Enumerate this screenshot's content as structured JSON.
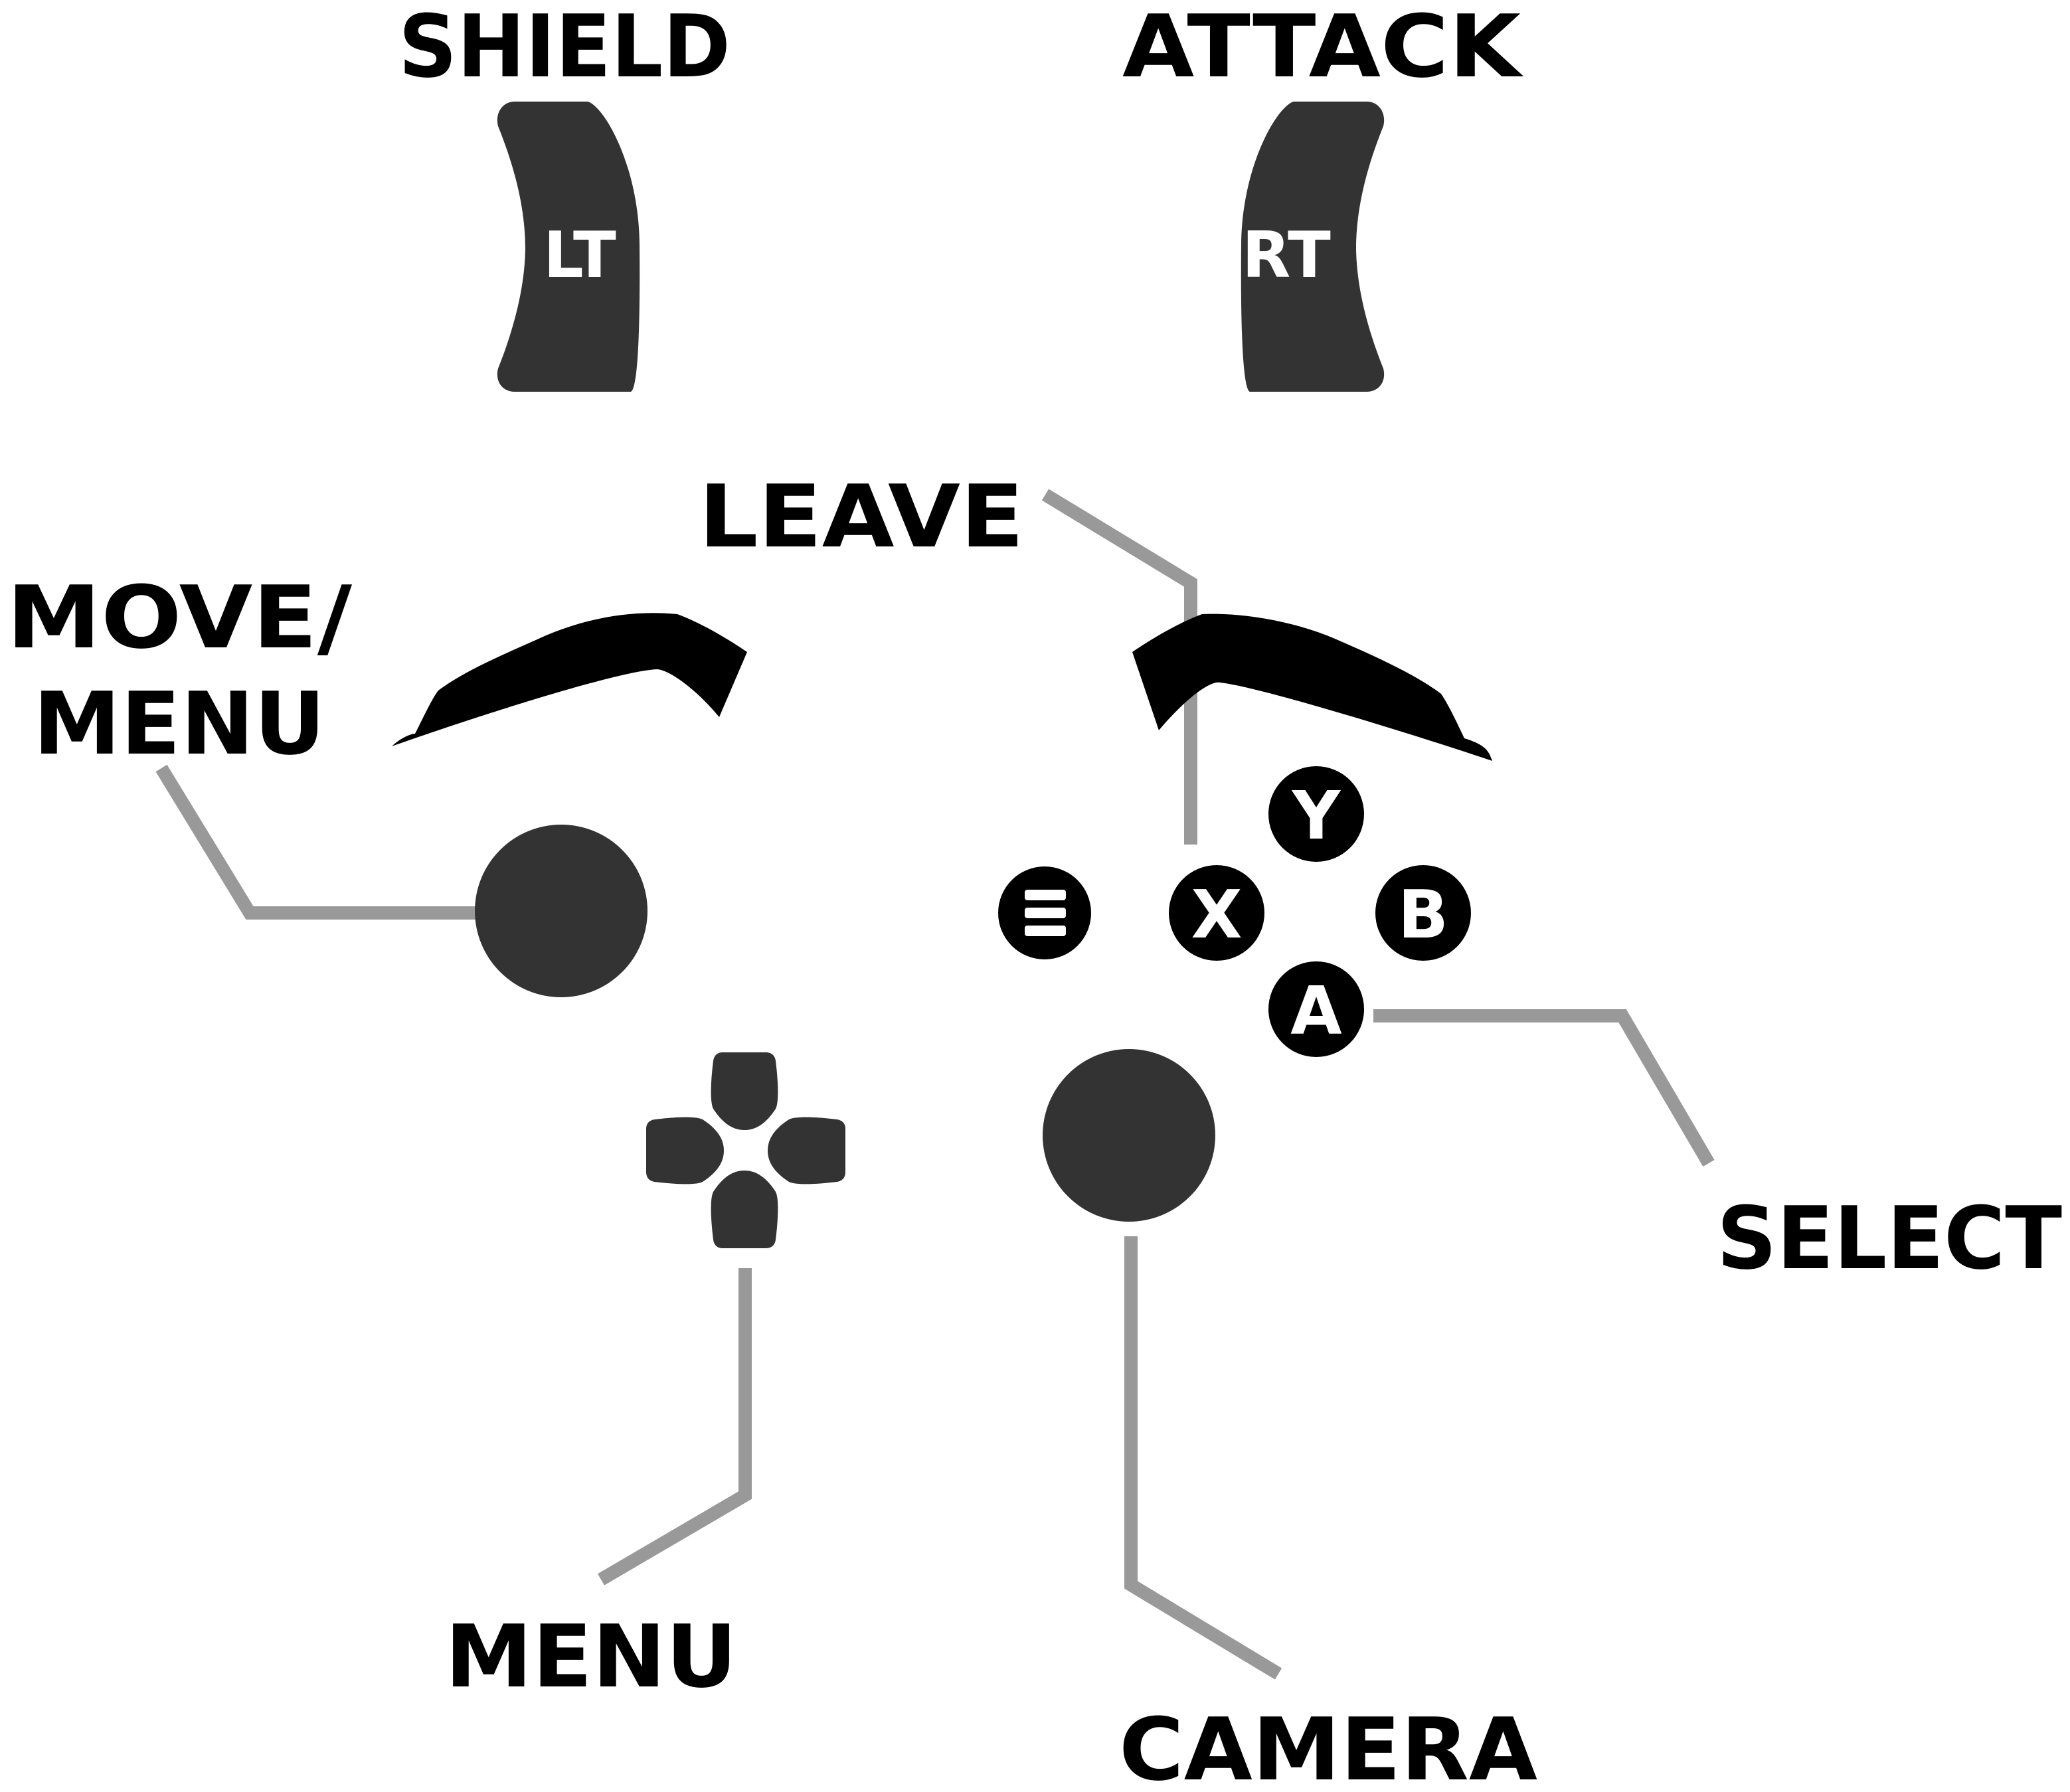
{
  "labels": {
    "shield": "SHIELD",
    "attack": "ATTACK",
    "leave": "LEAVE",
    "move_menu_line1": "MOVE/",
    "move_menu_line2": "MENU",
    "select": "SELECT",
    "menu": "MENU",
    "camera": "CAMERA"
  },
  "buttons": {
    "lt": "LT",
    "rt": "RT",
    "x": "X",
    "y": "Y",
    "b": "B",
    "a": "A"
  },
  "icons": [
    "view-button-icon",
    "dpad-icon",
    "left-stick-icon",
    "right-stick-icon"
  ],
  "colors": {
    "label_text": "#000000",
    "control_fill": "#333333",
    "button_fill": "#000000",
    "button_text": "#ffffff",
    "callout_line": "#999999"
  }
}
